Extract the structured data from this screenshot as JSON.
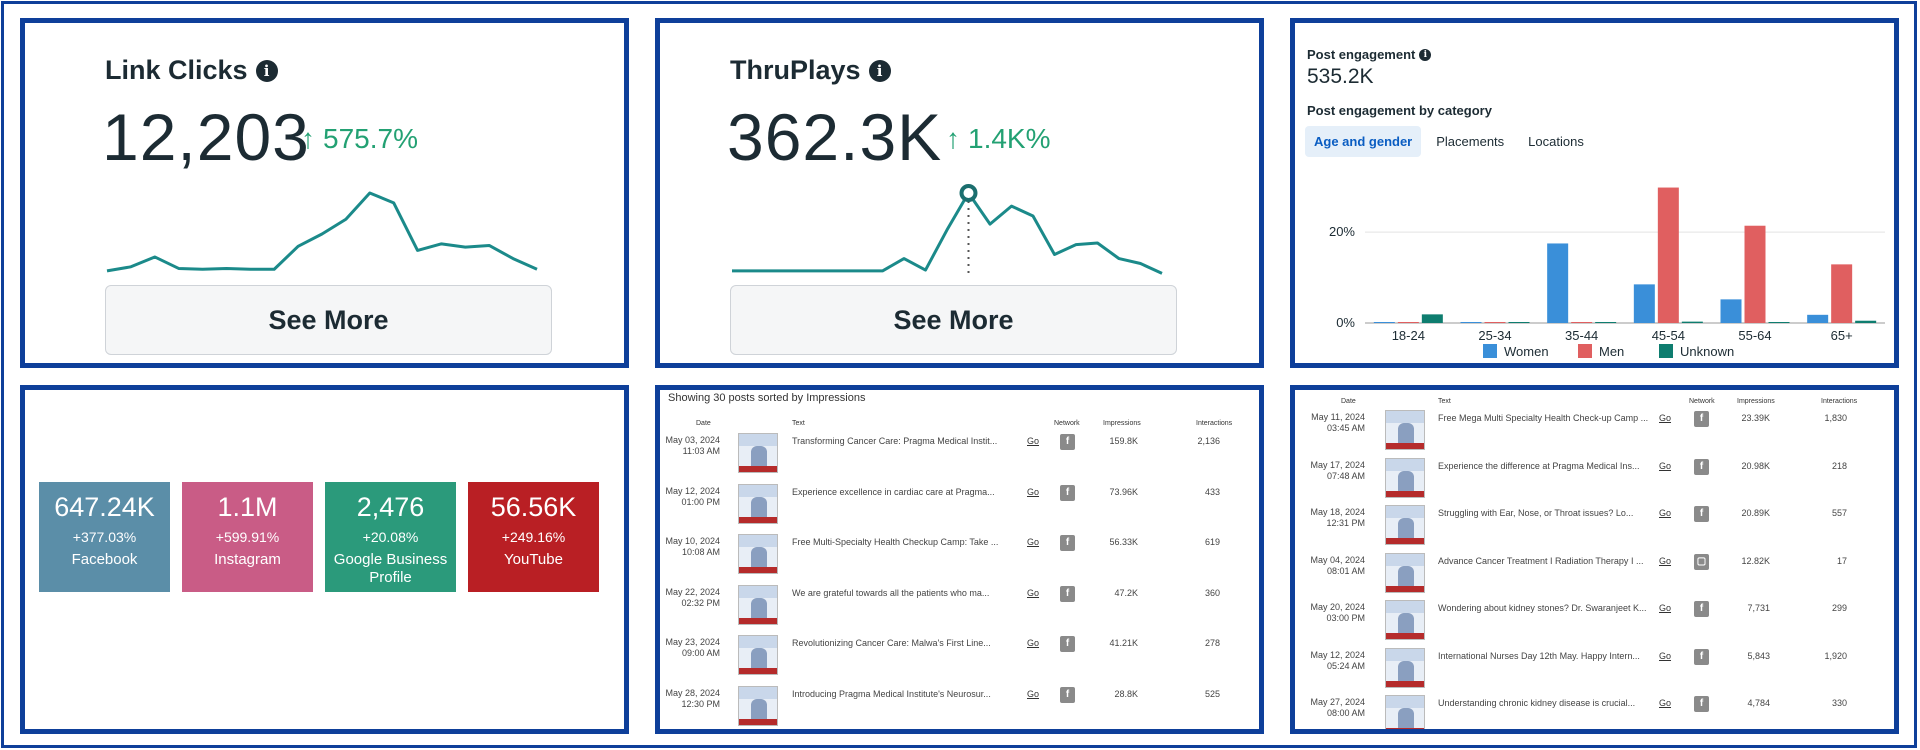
{
  "link_clicks": {
    "title": "Link Clicks",
    "value": "12,203",
    "arrow": "↑",
    "delta": "575.7%",
    "see_more": "See More",
    "spark": [
      0.05,
      0.1,
      0.22,
      0.08,
      0.07,
      0.08,
      0.07,
      0.07,
      0.35,
      0.5,
      0.68,
      1.0,
      0.88,
      0.3,
      0.38,
      0.34,
      0.36,
      0.2,
      0.07
    ]
  },
  "thruplays": {
    "title": "ThruPlays",
    "value": "362.3K",
    "arrow": "↑",
    "delta": "1.4K%",
    "see_more": "See More",
    "spark": [
      0.05,
      0.05,
      0.05,
      0.05,
      0.05,
      0.05,
      0.05,
      0.05,
      0.2,
      0.06,
      0.55,
      1.0,
      0.62,
      0.84,
      0.72,
      0.25,
      0.37,
      0.39,
      0.2,
      0.14,
      0.02
    ]
  },
  "post_engagement": {
    "title": "Post engagement",
    "value": "535.2K",
    "subtitle": "Post engagement by category",
    "tabs": [
      "Age and gender",
      "Placements",
      "Locations"
    ],
    "active_tab": 0
  },
  "chart_data": {
    "type": "bar",
    "categories": [
      "18-24",
      "25-34",
      "35-44",
      "45-54",
      "55-64",
      "65+"
    ],
    "series": [
      {
        "name": "Women",
        "color": "#3a8fd9",
        "values": [
          0.2,
          0.2,
          17.5,
          8.5,
          5.2,
          1.8
        ]
      },
      {
        "name": "Men",
        "color": "#e05f60",
        "values": [
          0.2,
          0.2,
          0.2,
          29.8,
          21.4,
          12.9
        ]
      },
      {
        "name": "Unknown",
        "color": "#0e7d6f",
        "values": [
          1.9,
          0.1,
          0.1,
          0.3,
          0.2,
          0.5
        ]
      }
    ],
    "yticks": [
      "0%",
      "20%"
    ],
    "ytick_values": [
      0,
      20
    ],
    "ylim": [
      0,
      33
    ],
    "grid": true,
    "legend": "bottom"
  },
  "social": [
    {
      "value": "647.24K",
      "delta": "+377.03%",
      "name": "Facebook",
      "color": "#5b8ea8"
    },
    {
      "value": "1.1M",
      "delta": "+599.91%",
      "name": "Instagram",
      "color": "#c95c86"
    },
    {
      "value": "2,476",
      "delta": "+20.08%",
      "name": "Google Business Profile",
      "color": "#2b9a7b"
    },
    {
      "value": "56.56K",
      "delta": "+249.16%",
      "name": "YouTube",
      "color": "#b91f24"
    }
  ],
  "posts_left": {
    "heading": "Showing 30 posts sorted by Impressions",
    "columns": {
      "date": "Date",
      "text": "Text",
      "network": "Network",
      "impressions": "Impressions",
      "interactions": "Interactions"
    },
    "rows": [
      {
        "date": "May 03, 2024",
        "time": "11:03 AM",
        "text": "Transforming Cancer Care: Pragma Medical Instit...",
        "go": "Go",
        "impressions": "159.8K",
        "interactions": "2,136"
      },
      {
        "date": "May 12, 2024",
        "time": "01:00 PM",
        "text": "Experience excellence in cardiac care at Pragma...",
        "go": "Go",
        "impressions": "73.96K",
        "interactions": "433"
      },
      {
        "date": "May 10, 2024",
        "time": "10:08 AM",
        "text": "Free Multi-Specialty Health Checkup Camp: Take ...",
        "go": "Go",
        "impressions": "56.33K",
        "interactions": "619"
      },
      {
        "date": "May 22, 2024",
        "time": "02:32 PM",
        "text": "We are grateful towards all the patients who ma...",
        "go": "Go",
        "impressions": "47.2K",
        "interactions": "360"
      },
      {
        "date": "May 23, 2024",
        "time": "09:00 AM",
        "text": "Revolutionizing Cancer Care: Malwa's First Line...",
        "go": "Go",
        "impressions": "41.21K",
        "interactions": "278"
      },
      {
        "date": "May 28, 2024",
        "time": "12:30 PM",
        "text": "Introducing Pragma Medical Institute's Neurosur...",
        "go": "Go",
        "impressions": "28.8K",
        "interactions": "525"
      }
    ]
  },
  "posts_right": {
    "columns": {
      "date": "Date",
      "text": "Text",
      "network": "Network",
      "impressions": "Impressions",
      "interactions": "Interactions"
    },
    "rows": [
      {
        "date": "May 11, 2024",
        "time": "03:45 AM",
        "text": "Free Mega Multi Specialty Health Check-up Camp ...",
        "go": "Go",
        "impressions": "23.39K",
        "interactions": "1,830",
        "net": "ig"
      },
      {
        "date": "May 17, 2024",
        "time": "07:48 AM",
        "text": "Experience the difference at Pragma Medical Ins...",
        "go": "Go",
        "impressions": "20.98K",
        "interactions": "218",
        "net": "ig"
      },
      {
        "date": "May 18, 2024",
        "time": "12:31 PM",
        "text": "Struggling with Ear, Nose, or Throat issues? Lo...",
        "go": "Go",
        "impressions": "20.89K",
        "interactions": "557",
        "net": "ig"
      },
      {
        "date": "May 04, 2024",
        "time": "08:01 AM",
        "text": "Advance Cancer Treatment I Radiation Therapy I ...",
        "go": "Go",
        "impressions": "12.82K",
        "interactions": "17",
        "net": "yt"
      },
      {
        "date": "May 20, 2024",
        "time": "03:00 PM",
        "text": "Wondering about kidney stones? Dr. Swaranjeet K...",
        "go": "Go",
        "impressions": "7,731",
        "interactions": "299",
        "net": "ig"
      },
      {
        "date": "May 12, 2024",
        "time": "05:24 AM",
        "text": "International Nurses Day 12th May. Happy Intern...",
        "go": "Go",
        "impressions": "5,843",
        "interactions": "1,920",
        "net": "ig"
      },
      {
        "date": "May 27, 2024",
        "time": "08:00 AM",
        "text": "Understanding chronic kidney disease is crucial...",
        "go": "Go",
        "impressions": "4,784",
        "interactions": "330",
        "net": "ig"
      }
    ]
  }
}
